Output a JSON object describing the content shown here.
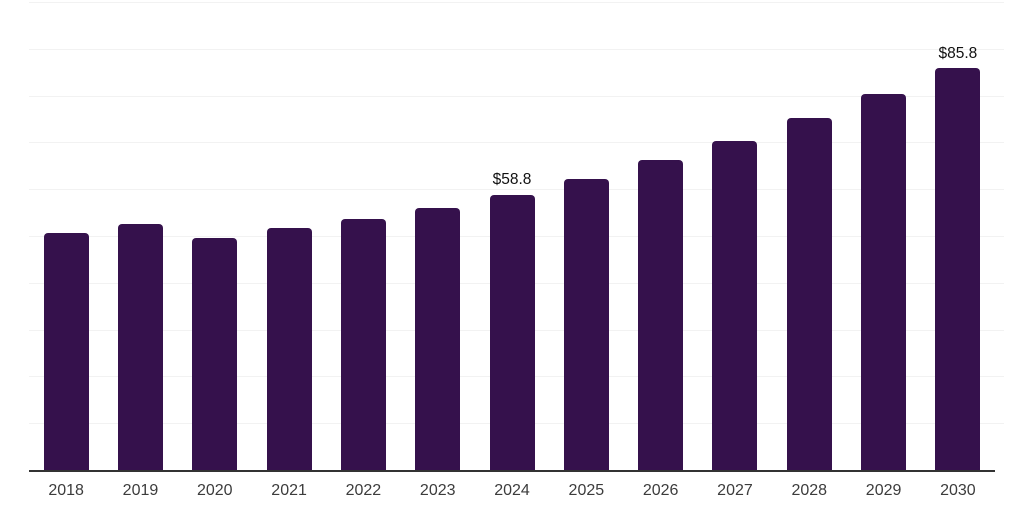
{
  "chart_data": {
    "type": "bar",
    "title": "",
    "xlabel": "",
    "ylabel": "",
    "categories": [
      "2018",
      "2019",
      "2020",
      "2021",
      "2022",
      "2023",
      "2024",
      "2025",
      "2026",
      "2027",
      "2028",
      "2029",
      "2030"
    ],
    "values": [
      50.6,
      52.6,
      49.6,
      51.7,
      53.7,
      56.0,
      58.8,
      62.1,
      66.2,
      70.4,
      75.2,
      80.4,
      85.8
    ],
    "data_labels": {
      "2024": "$58.8",
      "2030": "$85.8"
    },
    "ylim": [
      0,
      100
    ],
    "gridline_step": 10,
    "grid": "horizontal-only",
    "legend": "none",
    "y_tick_labels_visible": false,
    "colors": {
      "bar": "#35114C",
      "gridline": "#f2f2f2",
      "axis": "#333333",
      "tick_label": "#3c3c3c",
      "value_label": "#111111",
      "background": "#ffffff"
    }
  }
}
